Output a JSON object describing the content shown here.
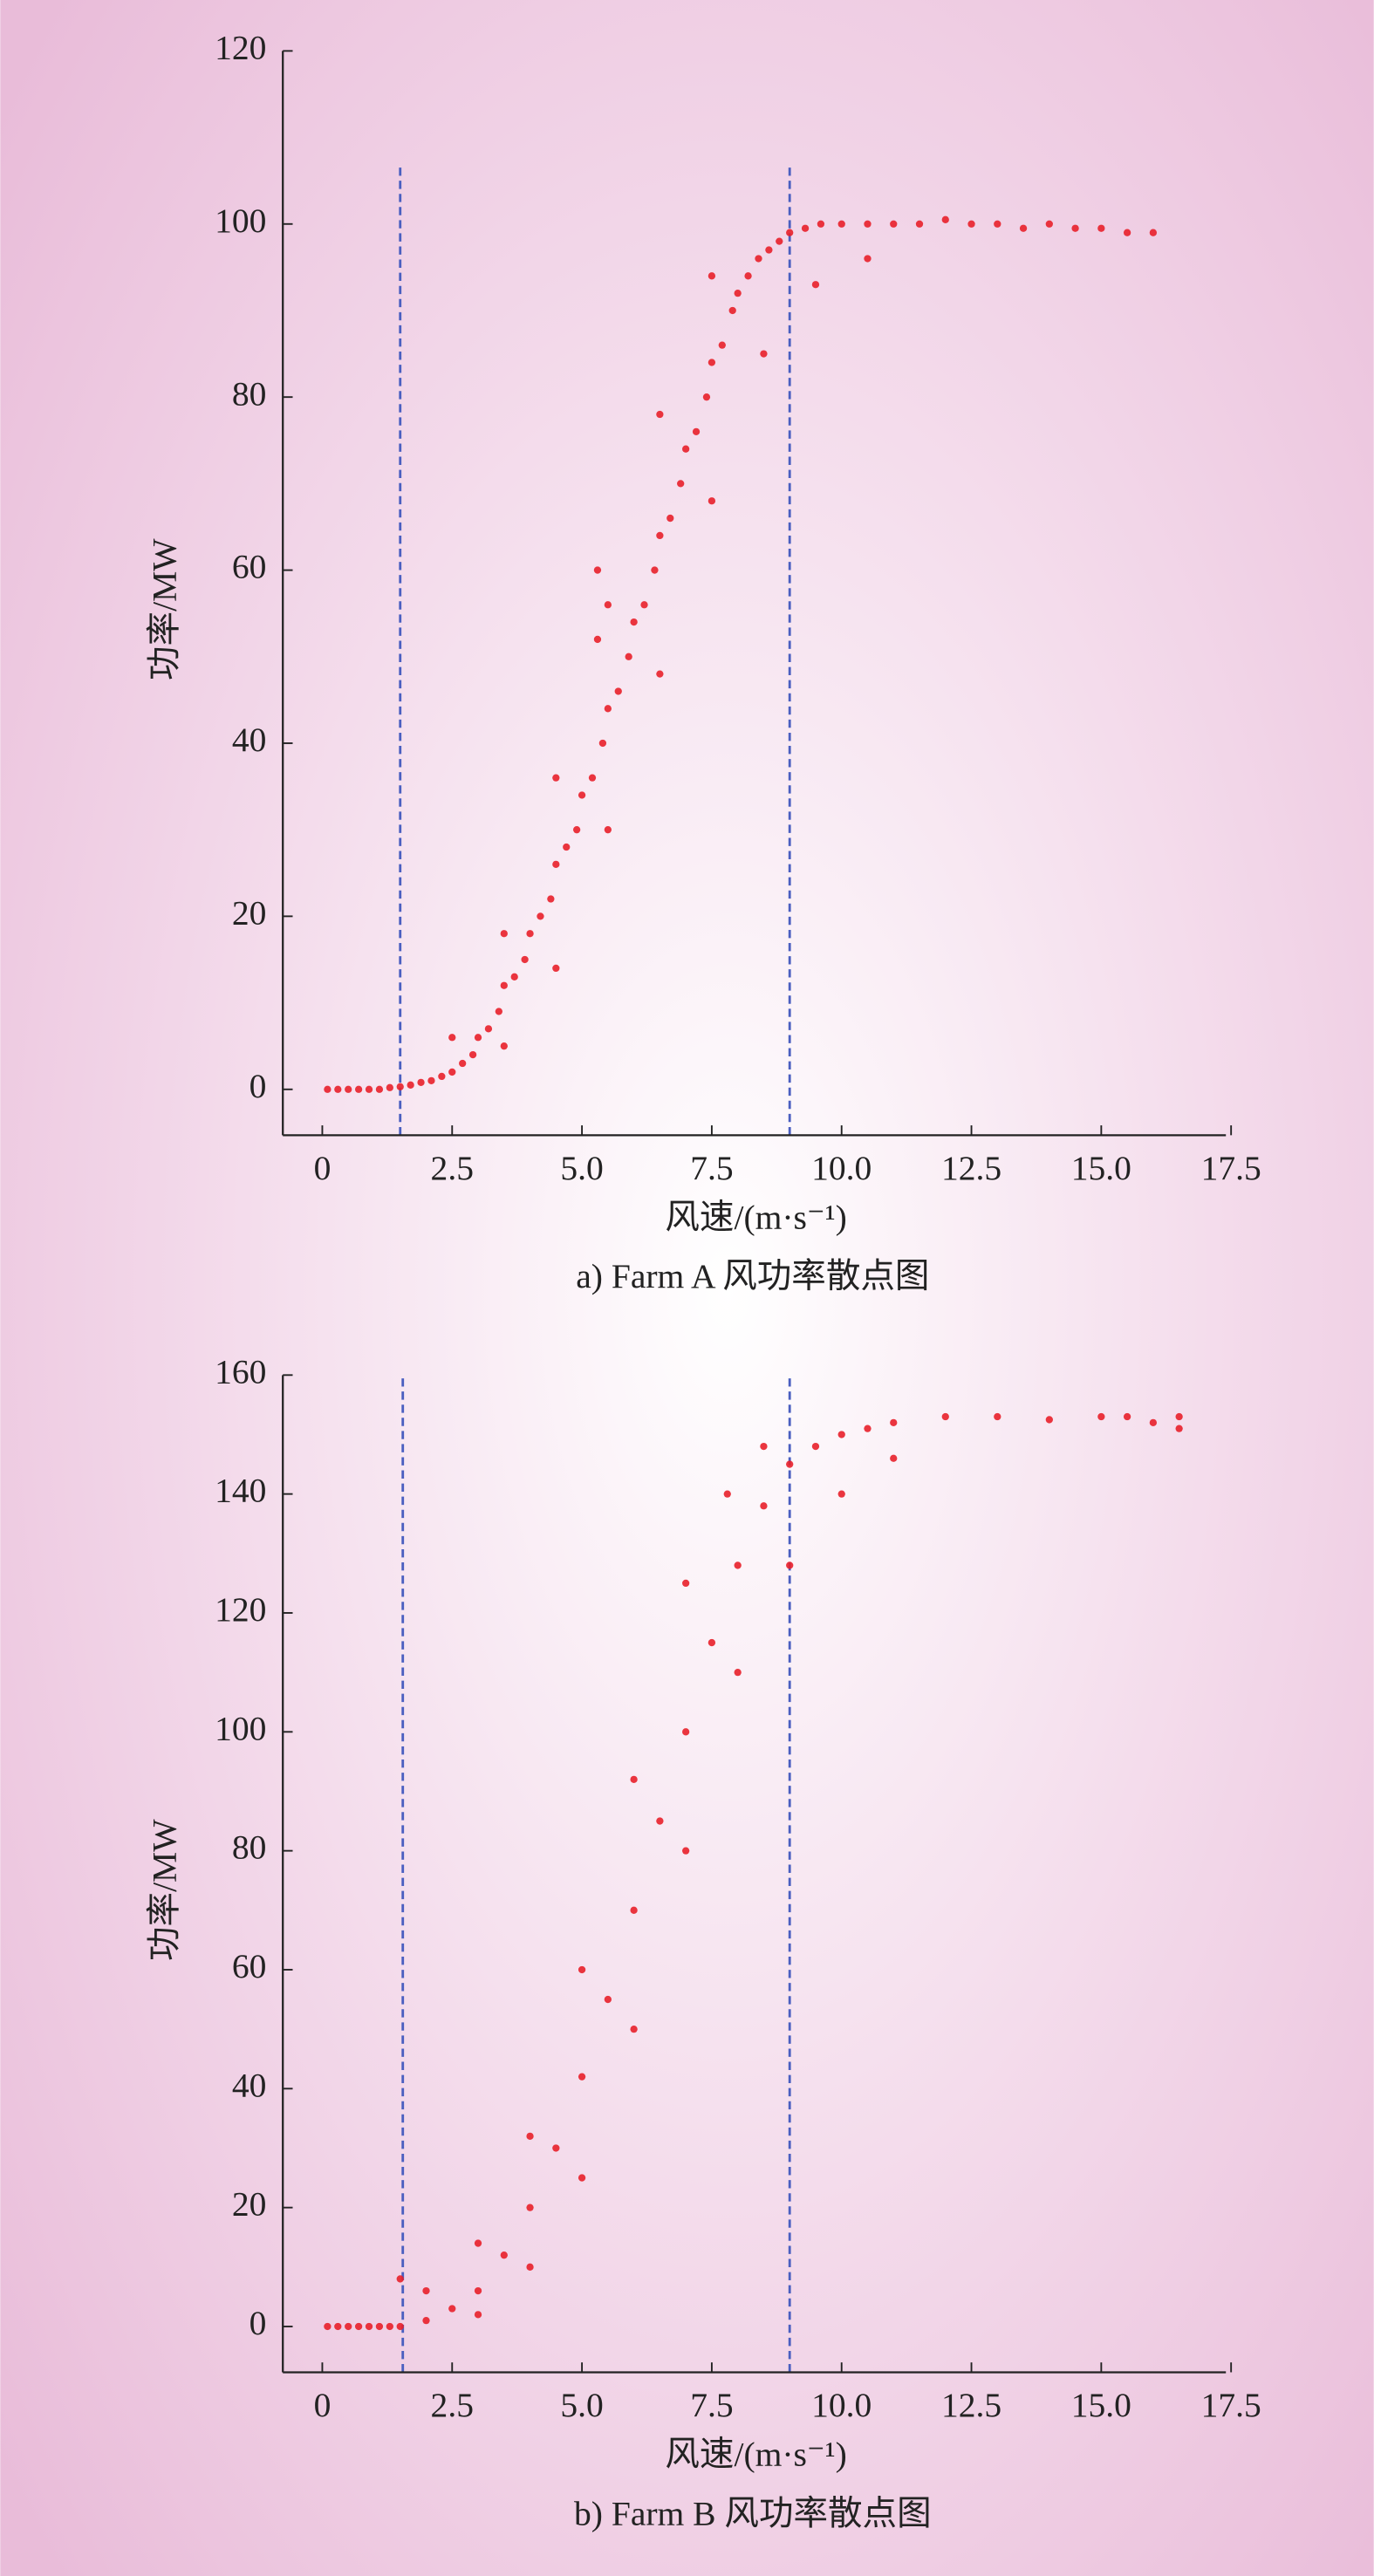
{
  "chart_data": [
    {
      "type": "scatter",
      "caption": "a) Farm A 风功率散点图",
      "xlabel": "风速/(m·s⁻¹)",
      "ylabel": "功率/MW",
      "color": "#e8202a",
      "x": [
        0.1,
        0.3,
        0.5,
        0.7,
        0.9,
        1.1,
        1.3,
        1.5,
        1.7,
        1.9,
        2.1,
        2.3,
        2.5,
        2.7,
        2.9,
        3.0,
        3.2,
        3.4,
        3.5,
        3.7,
        3.9,
        4.0,
        4.2,
        4.4,
        4.5,
        4.7,
        4.9,
        5.0,
        5.2,
        5.4,
        5.5,
        5.7,
        5.9,
        6.0,
        6.2,
        6.4,
        6.5,
        6.7,
        6.9,
        7.0,
        7.2,
        7.4,
        7.5,
        7.7,
        7.9,
        8.0,
        8.2,
        8.4,
        8.6,
        8.8,
        9.0,
        9.3,
        9.6,
        10,
        10.5,
        11,
        11.5,
        12,
        12.5,
        13,
        13.5,
        14,
        14.5,
        15,
        15.5,
        16,
        3.5,
        4.5,
        5.5,
        6.5,
        7.5,
        8.5,
        9.5,
        10.5,
        2.5,
        3.5,
        4.5,
        5.5,
        6.5,
        7.5,
        5.3,
        5.3
      ],
      "values": [
        0,
        0,
        0,
        0,
        0,
        0,
        0.2,
        0.3,
        0.5,
        0.8,
        1,
        1.5,
        2,
        3,
        4,
        6,
        7,
        9,
        12,
        13,
        15,
        18,
        20,
        22,
        26,
        28,
        30,
        34,
        36,
        40,
        44,
        46,
        50,
        54,
        56,
        60,
        64,
        66,
        70,
        74,
        76,
        80,
        84,
        86,
        90,
        92,
        94,
        96,
        97,
        98,
        99,
        99.5,
        100,
        100,
        100,
        100,
        100,
        100.5,
        100,
        100,
        99.5,
        100,
        99.5,
        99.5,
        99,
        99,
        5,
        14,
        30,
        48,
        68,
        85,
        93,
        96,
        6,
        18,
        36,
        56,
        78,
        94,
        60,
        52
      ],
      "xlim": [
        -0.76,
        17.4
      ],
      "ylim": [
        -5.3,
        120
      ],
      "xticks": [
        0,
        2.5,
        {
          "value": 5,
          "label": "5.0"
        },
        7.5,
        {
          "value": 10,
          "label": "10.0"
        },
        12.5,
        {
          "value": 15,
          "label": "15.0"
        },
        17.5
      ],
      "yticks": [
        0,
        20,
        40,
        60,
        80,
        100,
        120
      ],
      "vlines": [
        1.5,
        9.0
      ],
      "vline_ymax": 107,
      "vline_color": "#4a5fc0"
    },
    {
      "type": "scatter",
      "caption": "b) Farm B 风功率散点图",
      "xlabel": "风速/(m·s⁻¹)",
      "ylabel": "功率/MW",
      "color": "#e8202a",
      "x": [
        0.1,
        0.3,
        0.5,
        0.7,
        0.9,
        1.1,
        1.3,
        1.5,
        2,
        2.5,
        3,
        3.5,
        4,
        4.5,
        5,
        5.5,
        6,
        6.5,
        7,
        7.5,
        8,
        8.5,
        9,
        9.5,
        10,
        10.5,
        11,
        12,
        13,
        14,
        15,
        15.5,
        16,
        16.5,
        3,
        4,
        5,
        6,
        7,
        8,
        9,
        10,
        11,
        2,
        3,
        4,
        5,
        6,
        7,
        7.8,
        8.5,
        1.5,
        16.5
      ],
      "values": [
        0,
        0,
        0,
        0,
        0,
        0,
        0,
        0,
        1,
        3,
        6,
        12,
        20,
        30,
        42,
        55,
        70,
        85,
        100,
        115,
        128,
        138,
        145,
        148,
        150,
        151,
        152,
        153,
        153,
        152.5,
        153,
        153,
        152,
        151,
        2,
        10,
        25,
        50,
        80,
        110,
        128,
        140,
        146,
        6,
        14,
        32,
        60,
        92,
        125,
        140,
        148,
        8,
        153
      ],
      "xlim": [
        -0.76,
        17.4
      ],
      "ylim": [
        -7.7,
        160
      ],
      "xticks": [
        0,
        2.5,
        {
          "value": 5,
          "label": "5.0"
        },
        7.5,
        {
          "value": 10,
          "label": "10.0"
        },
        12.5,
        {
          "value": 15,
          "label": "15.0"
        },
        17.5
      ],
      "yticks": [
        0,
        20,
        40,
        60,
        80,
        100,
        120,
        140,
        160
      ],
      "vlines": [
        1.55,
        9.0
      ],
      "vline_ymax": 160,
      "vline_color": "#4a5fc0"
    }
  ]
}
